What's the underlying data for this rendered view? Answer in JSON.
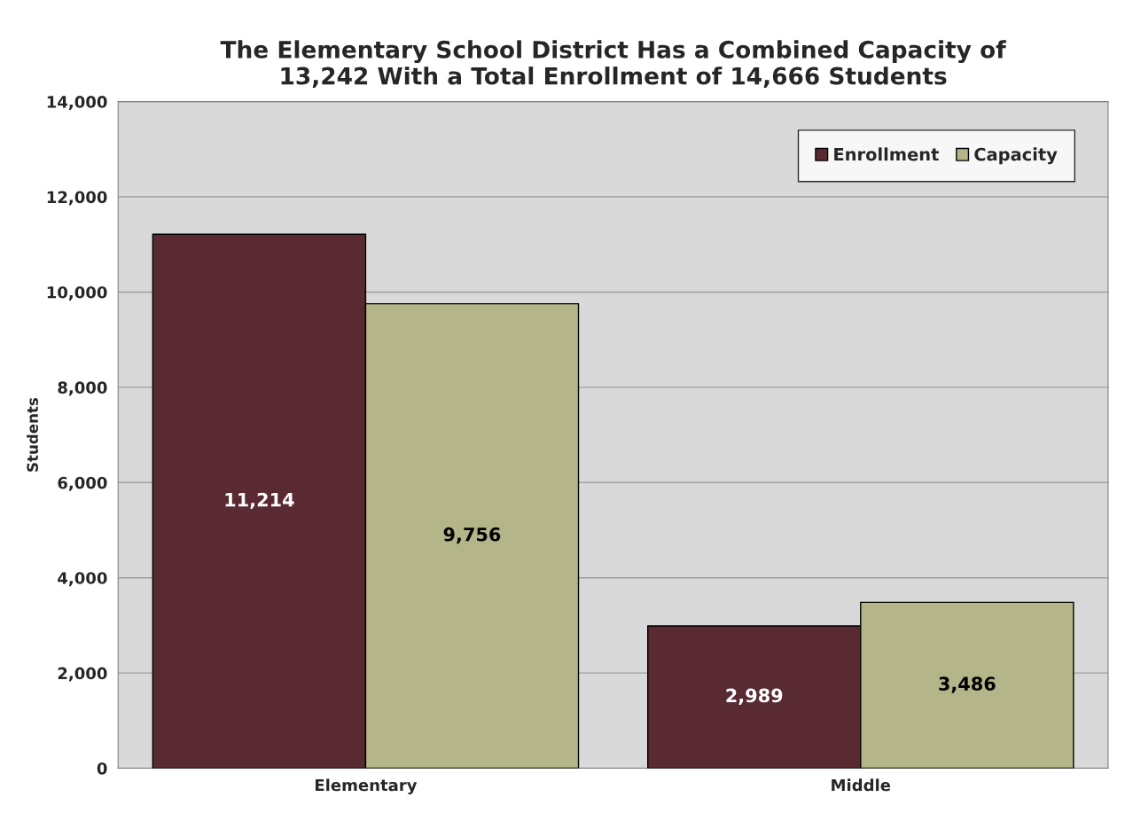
{
  "chart_data": {
    "type": "bar",
    "title": "The Elementary School District Has a Combined Capacity of\n13,242 With a Total Enrollment of 14,666 Students",
    "ylabel": "Students",
    "categories": [
      "Elementary",
      "Middle"
    ],
    "series": [
      {
        "name": "Enrollment",
        "color": "#5a2a32",
        "values": [
          11214,
          2989
        ],
        "value_labels": [
          "11,214",
          "2,989"
        ]
      },
      {
        "name": "Capacity",
        "color": "#b5b58a",
        "values": [
          9756,
          3486
        ],
        "value_labels": [
          "9,756",
          "3,486"
        ]
      }
    ],
    "ylim": [
      0,
      14000
    ],
    "yticks": [
      {
        "value": 0,
        "label": "0"
      },
      {
        "value": 2000,
        "label": "2,000"
      },
      {
        "value": 4000,
        "label": "4,000"
      },
      {
        "value": 6000,
        "label": "6,000"
      },
      {
        "value": 8000,
        "label": "8,000"
      },
      {
        "value": 10000,
        "label": "10,000"
      },
      {
        "value": 12000,
        "label": "12,000"
      },
      {
        "value": 14000,
        "label": "14,000"
      }
    ],
    "grid": "y",
    "legend": "top right"
  }
}
